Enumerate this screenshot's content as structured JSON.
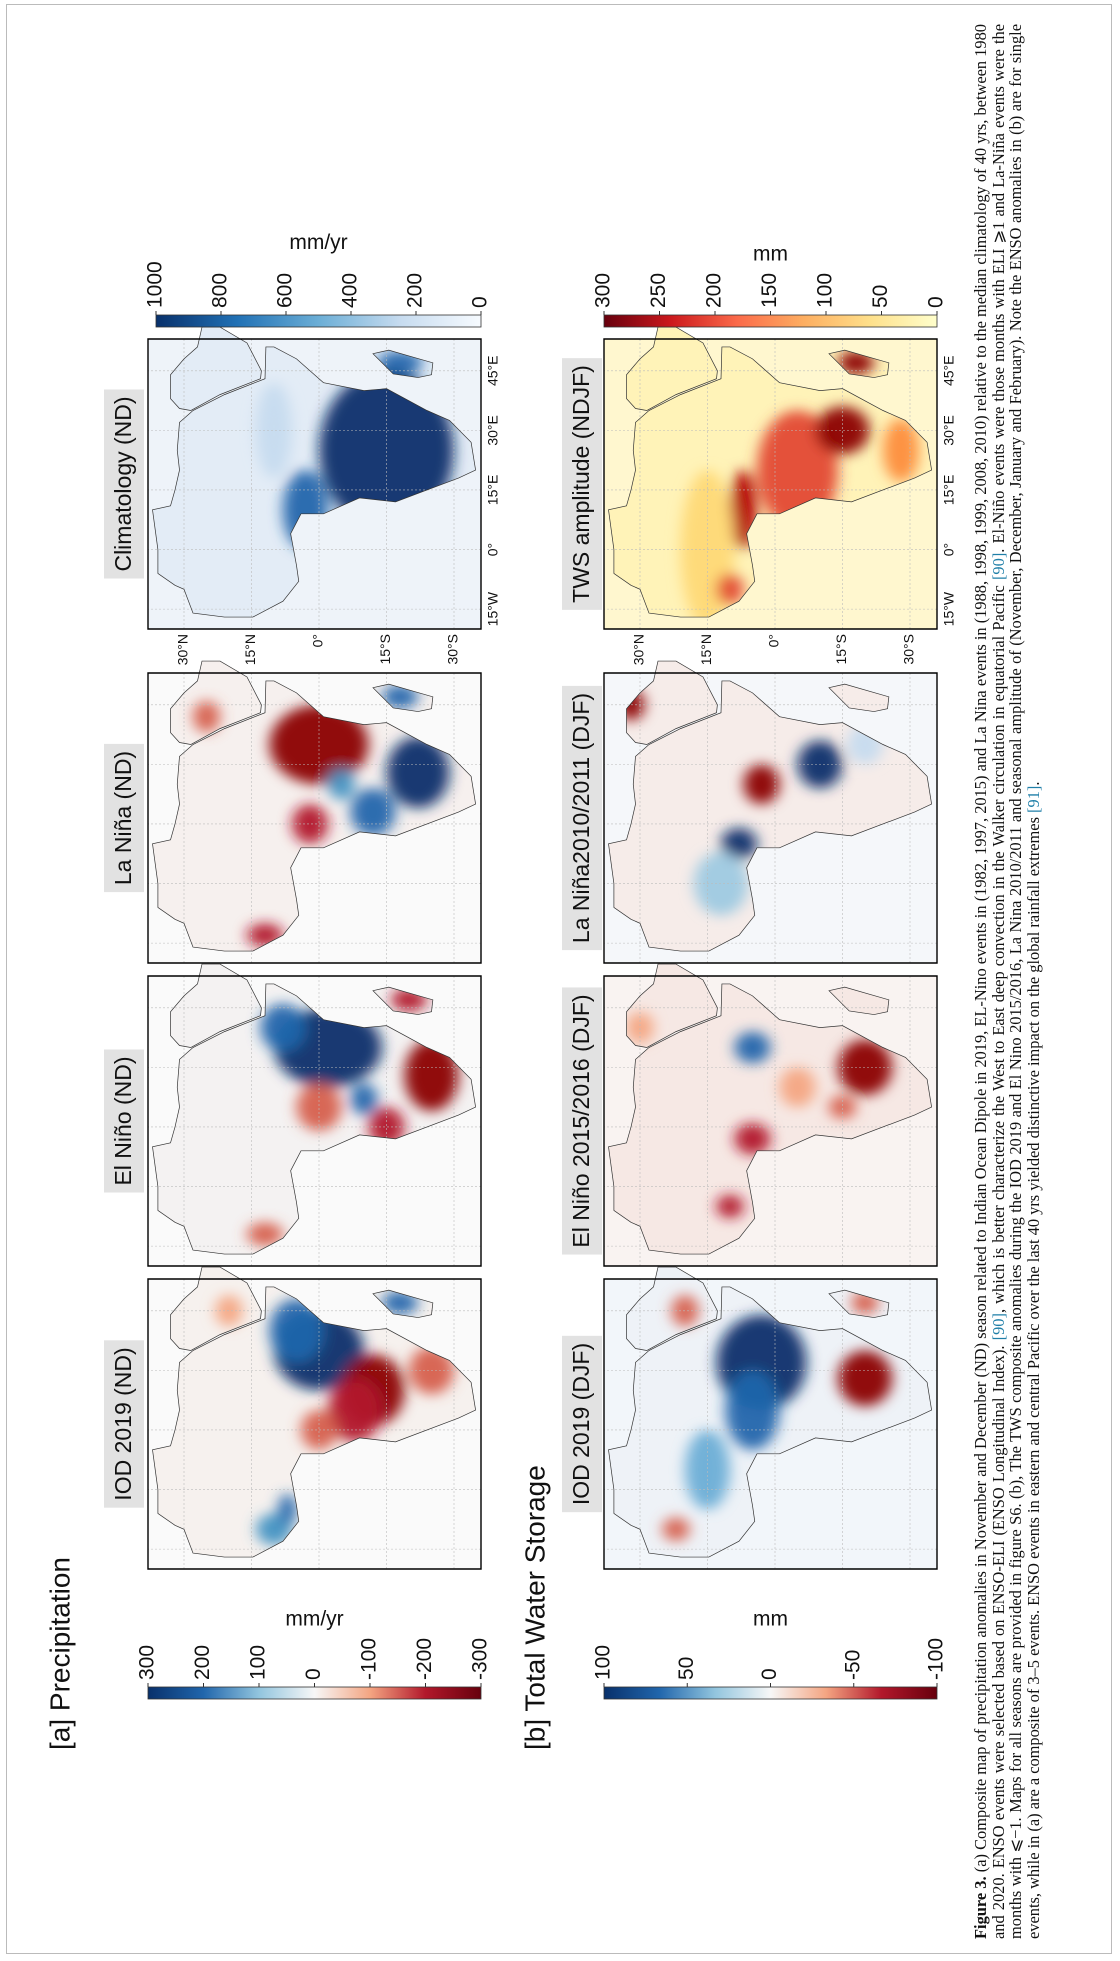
{
  "panel_a": {
    "heading": "[a] Precipitation",
    "maps": [
      {
        "title": "IOD 2019 (ND)"
      },
      {
        "title": "El Niño (ND)"
      },
      {
        "title": "La Niña (ND)"
      },
      {
        "title": "Climatology (ND)"
      }
    ],
    "colorbars": [
      {
        "label": "mm/yr",
        "lim": [
          -300,
          300
        ],
        "ticks": [
          300,
          200,
          100,
          0,
          -100,
          -200,
          -300
        ]
      },
      {
        "label": "mm/yr",
        "lim": [
          0,
          1000
        ],
        "ticks": [
          1000,
          800,
          600,
          400,
          200,
          0
        ]
      }
    ]
  },
  "panel_b": {
    "heading": "[b] Total Water Storage",
    "maps": [
      {
        "title": "IOD 2019 (DJF)"
      },
      {
        "title": "El Niño 2015/2016 (DJF)"
      },
      {
        "title": "La Niña2010/2011 (DJF)"
      },
      {
        "title": "TWS amplitude (NDJF)"
      }
    ],
    "colorbars": [
      {
        "label": "mm",
        "lim": [
          -100,
          100
        ],
        "ticks": [
          100,
          50,
          0,
          -50,
          -100
        ]
      },
      {
        "label": "mm",
        "lim": [
          0,
          300
        ],
        "ticks": [
          300,
          250,
          200,
          150,
          100,
          50,
          0
        ]
      }
    ]
  },
  "lat_ticks": [
    {
      "value": 30,
      "label": "30°N"
    },
    {
      "value": 15,
      "label": "15°N"
    },
    {
      "value": 0,
      "label": "0°"
    },
    {
      "value": -15,
      "label": "15°S"
    },
    {
      "value": -30,
      "label": "30°S"
    }
  ],
  "lon_ticks": [
    {
      "value": -15,
      "label": "15°W"
    },
    {
      "value": 0,
      "label": "0°"
    },
    {
      "value": 15,
      "label": "15°E"
    },
    {
      "value": 30,
      "label": "30°E"
    },
    {
      "value": 45,
      "label": "45°E"
    }
  ],
  "caption": {
    "label": "Figure 3.",
    "text": [
      "(a) Composite map of precipitation anomalies in November and December (ND) season related to Indian Ocean Dipole in 2019, EL-Nino events in (1982, 1997, 2015) and La Nina events in (1988, 1998, 1999, 2008, 2010) relative to the median climatology of 40 yrs, between 1980 and 2020. ENSO events were selected based on ENSO-ELI (ENSO Longitudinal Index). ",
      "[90]",
      ", which is better characterize the West to East deep convection in the Walker circulation in equatorial Pacific ",
      "[90]",
      ". El-Niño events were those months with ELI ⩾1 and La-Niña events were the months with ⩽−1. Maps for all seasons are provided in figure S6. (b), The TWS composite anomalies during the IOD 2019 and El Nino 2015/2016, La Nina 2010/2011 and seasonal amplitude of (November, December, January and February). Note the ENSO anomalies in (b) are for single events, while in (a) are a composite of 3–5 events. ENSO events in eastern and central Pacific over the last 40 yrs yielded distinctive impact on the global rainfall extremes ",
      "[91]",
      "."
    ]
  }
}
